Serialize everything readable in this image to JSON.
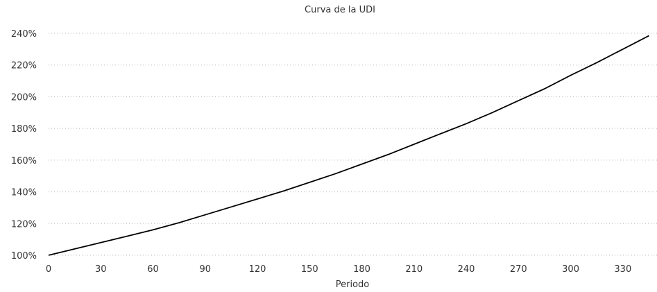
{
  "chart_data": {
    "type": "line",
    "title": "Curva de la UDI",
    "xlabel": "Periodo",
    "ylabel": "",
    "xlim": [
      0,
      350
    ],
    "ylim": [
      1.0,
      2.4
    ],
    "x_ticks": [
      0,
      30,
      60,
      90,
      120,
      150,
      180,
      210,
      240,
      270,
      300,
      330
    ],
    "x_tick_labels": [
      "0",
      "30",
      "60",
      "90",
      "120",
      "150",
      "180",
      "210",
      "240",
      "270",
      "300",
      "330"
    ],
    "y_ticks": [
      1.0,
      1.2,
      1.4,
      1.6,
      1.8,
      2.0,
      2.2,
      2.4
    ],
    "y_tick_labels": [
      "100%",
      "120%",
      "140%",
      "160%",
      "180%",
      "200%",
      "220%",
      "240%"
    ],
    "grid": "dotted horizontal",
    "legend": "none",
    "line_color": "#000000",
    "series": [
      {
        "x": [
          0,
          15,
          30,
          45,
          60,
          75,
          90,
          105,
          120,
          135,
          150,
          165,
          180,
          195,
          210,
          225,
          240,
          255,
          270,
          285,
          300,
          315,
          330,
          345
        ],
        "values": [
          1.0,
          1.04,
          1.08,
          1.12,
          1.16,
          1.205,
          1.255,
          1.305,
          1.355,
          1.405,
          1.46,
          1.515,
          1.575,
          1.635,
          1.7,
          1.765,
          1.83,
          1.9,
          1.975,
          2.05,
          2.135,
          2.215,
          2.3,
          2.385
        ]
      }
    ]
  }
}
